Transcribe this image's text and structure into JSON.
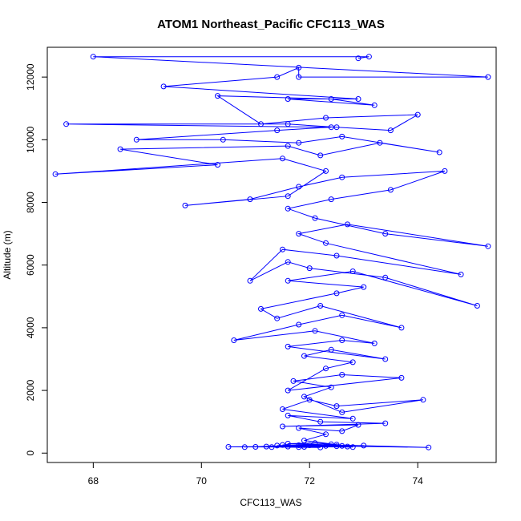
{
  "chart_data": {
    "type": "scatter",
    "title": "ATOM1 Northeast_Pacific CFC113_WAS",
    "xlabel": "CFC113_WAS",
    "ylabel": "Altitude (m)",
    "xlim": [
      67.15,
      75.45
    ],
    "ylim": [
      -300,
      12950
    ],
    "x_ticks": [
      68,
      70,
      72,
      74
    ],
    "y_ticks": [
      0,
      2000,
      4000,
      6000,
      8000,
      10000,
      12000
    ],
    "grid": false,
    "legend": "none",
    "series": [
      {
        "color": "#0000ff",
        "marker": "open-circle",
        "line": true,
        "points": [
          [
            72.2,
            180
          ],
          [
            71.3,
            190
          ],
          [
            71.6,
            210
          ],
          [
            72.5,
            220
          ],
          [
            71.9,
            200
          ],
          [
            72.6,
            230
          ],
          [
            73.0,
            240
          ],
          [
            71.5,
            260
          ],
          [
            72.0,
            250
          ],
          [
            72.8,
            190
          ],
          [
            71.2,
            210
          ],
          [
            70.5,
            200
          ],
          [
            71.8,
            190
          ],
          [
            72.3,
            230
          ],
          [
            74.2,
            180
          ],
          [
            71.6,
            300
          ],
          [
            72.1,
            320
          ],
          [
            72.4,
            280
          ],
          [
            71.4,
            240
          ],
          [
            72.7,
            210
          ],
          [
            71.0,
            200
          ],
          [
            70.8,
            190
          ],
          [
            71.8,
            250
          ],
          [
            72.5,
            270
          ],
          [
            71.9,
            400
          ],
          [
            72.3,
            600
          ],
          [
            71.8,
            800
          ],
          [
            72.6,
            700
          ],
          [
            72.9,
            900
          ],
          [
            71.5,
            850
          ],
          [
            73.4,
            950
          ],
          [
            72.2,
            1000
          ],
          [
            71.6,
            1200
          ],
          [
            72.8,
            1100
          ],
          [
            71.5,
            1400
          ],
          [
            72.0,
            1700
          ],
          [
            72.5,
            1500
          ],
          [
            74.1,
            1700
          ],
          [
            72.6,
            1300
          ],
          [
            71.9,
            1800
          ],
          [
            72.4,
            2100
          ],
          [
            71.7,
            2300
          ],
          [
            72.6,
            2500
          ],
          [
            73.7,
            2400
          ],
          [
            71.6,
            2000
          ],
          [
            72.3,
            2700
          ],
          [
            72.8,
            2900
          ],
          [
            71.9,
            3100
          ],
          [
            72.4,
            3300
          ],
          [
            73.4,
            3000
          ],
          [
            71.6,
            3400
          ],
          [
            72.6,
            3600
          ],
          [
            73.2,
            3500
          ],
          [
            72.1,
            3900
          ],
          [
            70.6,
            3600
          ],
          [
            71.8,
            4100
          ],
          [
            72.6,
            4400
          ],
          [
            73.7,
            4000
          ],
          [
            72.2,
            4700
          ],
          [
            71.4,
            4300
          ],
          [
            71.1,
            4600
          ],
          [
            72.5,
            5100
          ],
          [
            73.0,
            5300
          ],
          [
            71.6,
            5500
          ],
          [
            72.8,
            5800
          ],
          [
            75.1,
            4700
          ],
          [
            73.4,
            5600
          ],
          [
            72.0,
            5900
          ],
          [
            71.6,
            6100
          ],
          [
            70.9,
            5500
          ],
          [
            71.5,
            6500
          ],
          [
            72.5,
            6300
          ],
          [
            74.8,
            5700
          ],
          [
            72.3,
            6700
          ],
          [
            71.8,
            7000
          ],
          [
            72.7,
            7300
          ],
          [
            75.3,
            6600
          ],
          [
            73.4,
            7000
          ],
          [
            72.1,
            7500
          ],
          [
            71.6,
            7800
          ],
          [
            72.4,
            8100
          ],
          [
            73.5,
            8400
          ],
          [
            74.5,
            9000
          ],
          [
            72.6,
            8800
          ],
          [
            71.8,
            8500
          ],
          [
            70.9,
            8100
          ],
          [
            69.7,
            7900
          ],
          [
            71.6,
            8200
          ],
          [
            72.3,
            9000
          ],
          [
            71.5,
            9400
          ],
          [
            67.3,
            8900
          ],
          [
            70.3,
            9200
          ],
          [
            68.5,
            9700
          ],
          [
            71.6,
            9800
          ],
          [
            72.2,
            9500
          ],
          [
            73.3,
            9900
          ],
          [
            74.4,
            9600
          ],
          [
            72.6,
            10100
          ],
          [
            71.8,
            9900
          ],
          [
            70.4,
            10000
          ],
          [
            68.8,
            10000
          ],
          [
            71.4,
            10300
          ],
          [
            72.4,
            10400
          ],
          [
            67.5,
            10500
          ],
          [
            71.6,
            10500
          ],
          [
            72.5,
            10400
          ],
          [
            73.5,
            10300
          ],
          [
            74.0,
            10800
          ],
          [
            72.3,
            10700
          ],
          [
            71.1,
            10500
          ],
          [
            70.3,
            11400
          ],
          [
            72.4,
            11300
          ],
          [
            73.2,
            11100
          ],
          [
            71.6,
            11300
          ],
          [
            72.9,
            11300
          ],
          [
            69.3,
            11700
          ],
          [
            71.4,
            12000
          ],
          [
            71.8,
            12300
          ],
          [
            71.8,
            12000
          ],
          [
            75.3,
            12000
          ],
          [
            68.0,
            12650
          ],
          [
            73.1,
            12650
          ],
          [
            72.9,
            12600
          ]
        ]
      }
    ]
  }
}
